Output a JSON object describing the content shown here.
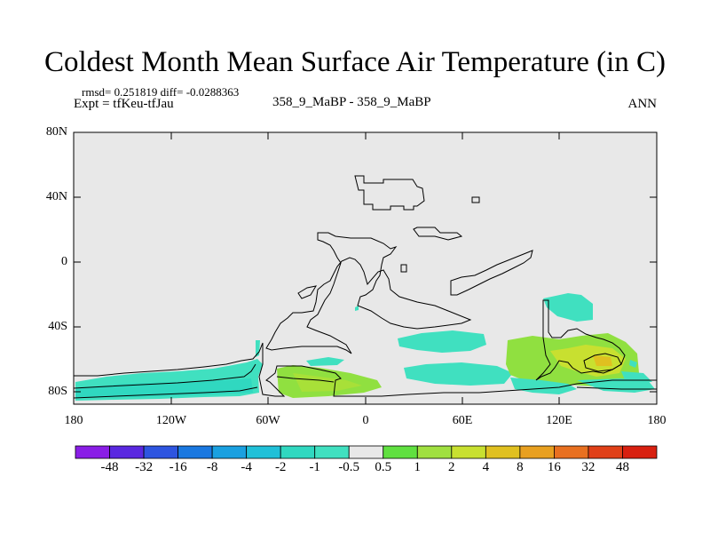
{
  "title": "Coldest Month Mean Surface Air Temperature (in C)",
  "stats_text": "rmsd= 0.251819 diff= -0.0288363",
  "experiment_text": "Expt = tfKeu-tfJau",
  "center_text": "358_9_MaBP - 358_9_MaBP",
  "season_text": "ANN",
  "y_axis_labels": [
    "80N",
    "40N",
    "0",
    "40S",
    "80S"
  ],
  "x_axis_labels": [
    "180",
    "120W",
    "60W",
    "0",
    "60E",
    "120E",
    "180"
  ],
  "colorbar": {
    "labels": [
      "-48",
      "-32",
      "-16",
      "-8",
      "-4",
      "-2",
      "-1",
      "-0.5",
      "0.5",
      "1",
      "2",
      "4",
      "8",
      "16",
      "32",
      "48"
    ],
    "colors": [
      "#8a1ee6",
      "#5a28e0",
      "#2e55e0",
      "#1a78e0",
      "#1aa0e0",
      "#20c0d8",
      "#30d8c0",
      "#40e0c0",
      "#e8e8e8",
      "#60e040",
      "#a0e040",
      "#c8e030",
      "#e0c020",
      "#e8a020",
      "#e87020",
      "#e04018",
      "#d82010"
    ]
  },
  "map": {
    "background_color": "#e8e8e8",
    "region_colors": {
      "cool_small": "#40e0c0",
      "warm_small": "#90e040",
      "warm_mid": "#c8e030",
      "warm_high": "#e0c020"
    }
  }
}
